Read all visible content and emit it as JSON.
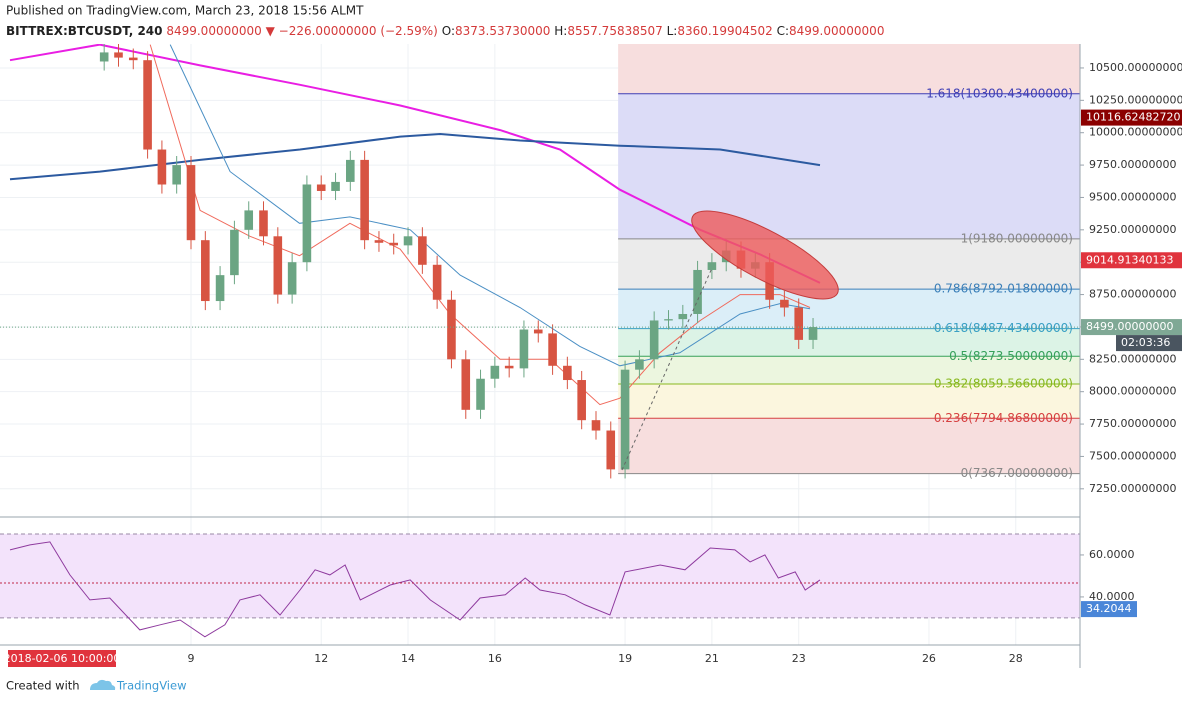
{
  "header": {
    "published": "Published on TradingView.com, March 23, 2018 15:56 ALMT",
    "symbol": "BITTREX:BTCUSDT, 240",
    "last": "8499.00000000",
    "direction": "▼",
    "change": "−226.00000000 (−2.59%)",
    "ohlc": [
      {
        "key": "O:",
        "value": "8373.53730000"
      },
      {
        "key": "H:",
        "value": "8557.75838507"
      },
      {
        "key": "L:",
        "value": "8360.19904502"
      },
      {
        "key": "C:",
        "value": "8499.00000000"
      }
    ]
  },
  "footer": {
    "created": "Created with",
    "brand": "TradingView"
  },
  "crosshair_date": "2018-02-06 10:00:00",
  "timer": "02:03:36",
  "chart_data": {
    "type": "candlestick",
    "grid": true,
    "up_color": "#6ba583",
    "down_color": "#d75442",
    "xlim": [
      4.6,
      29.48
    ],
    "xticks": [
      9,
      12,
      14,
      16,
      19,
      21,
      23,
      26,
      28
    ],
    "ylim": [
      7040,
      10685
    ],
    "yticks": [
      {
        "value": 10500,
        "label": "10500.00000000"
      },
      {
        "value": 10250,
        "label": "10250.00000000"
      },
      {
        "value": 10000,
        "label": "10000.00000000"
      },
      {
        "value": 9750,
        "label": "9750.00000000"
      },
      {
        "value": 9500,
        "label": "9500.00000000"
      },
      {
        "value": 9250,
        "label": "9250.00000000"
      },
      {
        "value": 9000,
        "label": "9000.00000000"
      },
      {
        "value": 8750,
        "label": "8750.00000000"
      },
      {
        "value": 8500,
        "label": "8500.00000000"
      },
      {
        "value": 8250,
        "label": "8250.00000000"
      },
      {
        "value": 8000,
        "label": "8000.00000000"
      },
      {
        "value": 7750,
        "label": "7750.00000000"
      },
      {
        "value": 7500,
        "label": "7500.00000000"
      },
      {
        "value": 7250,
        "label": "7250.00000000"
      }
    ],
    "x": [
      7,
      7.33,
      7.67,
      8,
      8.33,
      8.67,
      9,
      9.33,
      9.67,
      10,
      10.33,
      10.67,
      11,
      11.33,
      11.67,
      12,
      12.33,
      12.67,
      13,
      13.33,
      13.67,
      14,
      14.33,
      14.67,
      15,
      15.33,
      15.67,
      16,
      16.33,
      16.67,
      17,
      17.33,
      17.67,
      18,
      18.33,
      18.67,
      19,
      19.33,
      19.67,
      20,
      20.33,
      20.67,
      21,
      21.33,
      21.67,
      22,
      22.33,
      22.67,
      23,
      23.33
    ],
    "open": [
      10550,
      10620,
      10580,
      10560,
      9870,
      9600,
      9750,
      9170,
      8700,
      8900,
      9250,
      9400,
      9200,
      8750,
      9000,
      9600,
      9550,
      9620,
      9790,
      9170,
      9150,
      9130,
      9200,
      8980,
      8710,
      8250,
      7860,
      8100,
      8200,
      8180,
      8480,
      8450,
      8200,
      8090,
      7780,
      7700,
      7400,
      8170,
      8250,
      8550,
      8560,
      8600,
      8940,
      9000,
      9090,
      8950,
      9000,
      8710,
      8650,
      8400
    ],
    "high": [
      10690,
      10690,
      10650,
      10630,
      9940,
      9820,
      9820,
      9240,
      8970,
      9320,
      9470,
      9470,
      9270,
      9070,
      9670,
      9670,
      9690,
      9860,
      9860,
      9240,
      9220,
      9270,
      9270,
      9050,
      8780,
      8320,
      8170,
      8270,
      8270,
      8550,
      8550,
      8520,
      8270,
      8160,
      7850,
      7770,
      8240,
      8320,
      8620,
      8630,
      8670,
      9010,
      9070,
      9160,
      9160,
      9070,
      9070,
      8780,
      8720,
      8569
    ],
    "low": [
      10480,
      10510,
      10490,
      9800,
      9530,
      9530,
      9100,
      8630,
      8630,
      8830,
      9180,
      9130,
      8680,
      8680,
      8930,
      9480,
      9480,
      9550,
      9100,
      9080,
      9060,
      9060,
      8910,
      8640,
      8180,
      7790,
      7790,
      8030,
      8110,
      8110,
      8380,
      8130,
      8020,
      7710,
      7630,
      7330,
      7330,
      8100,
      8180,
      8480,
      8490,
      8530,
      8870,
      8930,
      8880,
      8880,
      8640,
      8580,
      8330,
      8330
    ],
    "close": [
      10620,
      10580,
      10560,
      9870,
      9600,
      9750,
      9170,
      8700,
      8900,
      9250,
      9400,
      9200,
      8750,
      9000,
      9600,
      9550,
      9620,
      9790,
      9170,
      9150,
      9130,
      9200,
      8980,
      8710,
      8250,
      7860,
      8100,
      8200,
      8180,
      8480,
      8450,
      8200,
      8090,
      7780,
      7700,
      7400,
      8170,
      8250,
      8550,
      8560,
      8600,
      8940,
      9000,
      9090,
      8950,
      9000,
      8710,
      8650,
      8400,
      8499
    ],
    "lines": [
      {
        "color": "#e91ee3",
        "width": 2,
        "x": [
          4.83,
          6.9,
          9.21,
          11.51,
          13.82,
          16.12,
          17.5,
          18.88,
          20.73,
          22.11,
          23.49
        ],
        "values": [
          10560,
          10680,
          10520,
          10370,
          10210,
          10020,
          9870,
          9560,
          9250,
          9060,
          8840
        ]
      },
      {
        "color": "#2c5aa0",
        "width": 2,
        "x": [
          4.83,
          6.9,
          9.21,
          11.51,
          13.82,
          14.74,
          16.58,
          18.88,
          21.19,
          23.49
        ],
        "values": [
          9640,
          9700,
          9790,
          9870,
          9970,
          9990,
          9940,
          9900,
          9870,
          9750
        ]
      },
      {
        "color": "#f06a5c",
        "width": 1,
        "x": [
          8.06,
          9.21,
          10.36,
          11.5,
          12.66,
          13.82,
          14.97,
          16.12,
          17.27,
          18.42,
          18.88,
          19.8,
          20.73,
          21.65,
          22.57,
          23.26
        ],
        "values": [
          10680,
          9400,
          9200,
          9050,
          9300,
          9100,
          8600,
          8250,
          8250,
          7900,
          7950,
          8300,
          8550,
          8750,
          8750,
          8650
        ]
      },
      {
        "color": "#4a8fc4",
        "width": 1,
        "x": [
          8.52,
          9.9,
          11.5,
          12.66,
          14.05,
          15.2,
          16.58,
          17.96,
          18.88,
          20.26,
          21.65,
          22.57,
          23.26
        ],
        "values": [
          10680,
          9700,
          9300,
          9350,
          9250,
          8900,
          8650,
          8350,
          8200,
          8300,
          8600,
          8680,
          8640
        ]
      }
    ],
    "fib_start": 18.84,
    "fib": [
      {
        "label": "1.618(10300.43400000)",
        "value": 10300.434,
        "color": "#3f3fb5",
        "fill": "#f7dede"
      },
      {
        "label": "1(9180.00000000)",
        "value": 9180,
        "color": "#888888",
        "fill": "#dcdcf7"
      },
      {
        "label": "0.786(8792.01800000)",
        "value": 8792.018,
        "color": "#3b7fb8",
        "fill": "#ebebeb"
      },
      {
        "label": "0.618(8487.43400000)",
        "value": 8487.434,
        "color": "#3aa0c4",
        "fill": "#dbeef8"
      },
      {
        "label": "0.5(8273.50000000)",
        "value": 8273.5,
        "color": "#36a05a",
        "fill": "#dcf3e6"
      },
      {
        "label": "0.382(8059.56600000)",
        "value": 8059.566,
        "color": "#88b81e",
        "fill": "#ecf6df"
      },
      {
        "label": "0.236(7794.86800000)",
        "value": 7794.868,
        "color": "#d64040",
        "fill": "#fbf6de"
      },
      {
        "label": "0(7367.00000000)",
        "value": 7367,
        "color": "#888888",
        "fill": "#f7dede"
      }
    ],
    "price_labels": [
      {
        "value": 10116.6248272,
        "label": "10116.62482720",
        "color": "#8b0000"
      },
      {
        "value": 9014.91340133,
        "label": "9014.91340133",
        "color": "#e0333d"
      },
      {
        "value": 8499,
        "label": "8499.00000000",
        "color": "#7fa895"
      }
    ],
    "rsi": {
      "color": "#8e3a9e",
      "ylim": [
        17.1,
        77.6
      ],
      "band": [
        30,
        70
      ],
      "yticks": [
        {
          "value": 60,
          "label": "60.0000"
        },
        {
          "value": 40,
          "label": "40.0000"
        }
      ],
      "x": [
        4.83,
        5.29,
        5.75,
        6.21,
        6.67,
        7.13,
        7.82,
        8.29,
        8.75,
        9.32,
        9.78,
        10.13,
        10.59,
        11.05,
        11.51,
        11.86,
        12.2,
        12.55,
        12.9,
        13.59,
        14.05,
        14.51,
        15.2,
        15.66,
        16.24,
        16.7,
        17.04,
        17.62,
        18.08,
        18.65,
        19,
        19.81,
        20.38,
        20.96,
        21.53,
        21.88,
        22.22,
        22.53,
        22.92,
        23.15,
        23.49
      ],
      "values": [
        62.4,
        64.8,
        66.2,
        50.5,
        38.6,
        39.5,
        24.3,
        26.7,
        29,
        21,
        26.7,
        38.6,
        41,
        31.4,
        43.3,
        52.9,
        50.5,
        55.2,
        38.6,
        45.7,
        48.1,
        38.6,
        29,
        39.5,
        41,
        49,
        43.3,
        41,
        36.2,
        31.4,
        51.9,
        55.2,
        52.9,
        63.3,
        62.4,
        56.7,
        60,
        49,
        51.9,
        43.3,
        48.1
      ],
      "label": {
        "value": 34.2044,
        "label": "34.2044",
        "color": "#4a86d8"
      }
    }
  }
}
